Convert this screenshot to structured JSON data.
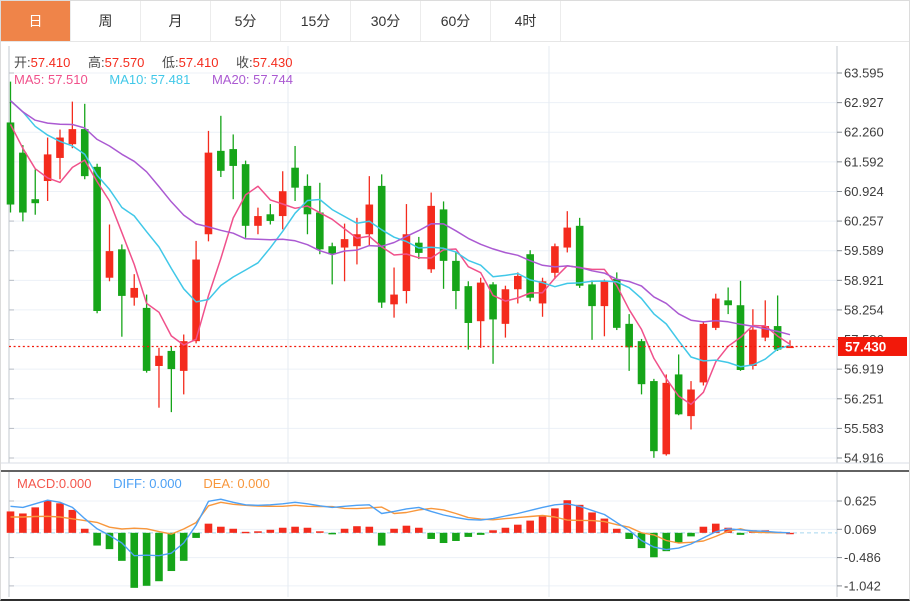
{
  "tabs": {
    "items": [
      {
        "id": "day",
        "label": "日",
        "selected": true
      },
      {
        "id": "week",
        "label": "周",
        "selected": false
      },
      {
        "id": "month",
        "label": "月",
        "selected": false
      },
      {
        "id": "5min",
        "label": "5分",
        "selected": false
      },
      {
        "id": "15min",
        "label": "15分",
        "selected": false
      },
      {
        "id": "30min",
        "label": "30分",
        "selected": false
      },
      {
        "id": "60min",
        "label": "60分",
        "selected": false
      },
      {
        "id": "4hour",
        "label": "4时",
        "selected": false
      }
    ]
  },
  "quote": {
    "open_label": "开:",
    "open": "57.410",
    "high_label": "高:",
    "high": "57.570",
    "low_label": "低:",
    "low": "57.410",
    "close_label": "收:",
    "close": "57.430"
  },
  "ma_info": {
    "ma5_label": "MA5:",
    "ma5": "57.510",
    "ma10_label": "MA10:",
    "ma10": "57.481",
    "ma20_label": "MA20:",
    "ma20": "57.744"
  },
  "macd_info": {
    "macd_label": "MACD:",
    "macd": "0.000",
    "diff_label": "DIFF:",
    "diff": "0.000",
    "dea_label": "DEA:",
    "dea": "0.000"
  },
  "price_marker": {
    "value": "57.430",
    "price": 57.43
  },
  "colors": {
    "up": "#f42b1d",
    "down": "#16a519",
    "ma5": "#f0518b",
    "ma10": "#41c8e8",
    "ma20": "#ab5ad2",
    "diff": "#4da1f5",
    "dea": "#f8973c",
    "tab_accent": "#ef8449",
    "marker": "#f2190a",
    "grid": "#ecf1f7",
    "vgrid": "#e6ebf2",
    "axis": "#c3c8cf",
    "tick_text": "#3e3e3e",
    "zero_dash": "#a6d7ef"
  },
  "chart_data": {
    "type": "candlestick+macd",
    "legend_position": "top-left-overlay",
    "grid": true,
    "v_grid_x": [
      287,
      548
    ],
    "main": {
      "ylabel": "",
      "y_ticks": [
        "63.595",
        "62.927",
        "62.260",
        "61.592",
        "60.924",
        "60.257",
        "59.589",
        "58.921",
        "58.254",
        "57.586",
        "56.919",
        "56.251",
        "55.583",
        "54.916"
      ],
      "last_price": 57.43,
      "ma_periods": [
        5,
        10,
        20
      ],
      "ma_pad": [
        63.9,
        63.75,
        63.55,
        63.35,
        63.15,
        62.95,
        62.8,
        62.65
      ],
      "candles": [
        [
          62.48,
          63.4,
          60.45,
          60.63
        ],
        [
          61.8,
          61.97,
          60.25,
          60.45
        ],
        [
          60.75,
          61.42,
          60.4,
          60.66
        ],
        [
          61.16,
          62.14,
          60.71,
          61.76
        ],
        [
          61.68,
          62.32,
          61.2,
          62.14
        ],
        [
          61.99,
          62.95,
          61.9,
          62.33
        ],
        [
          62.33,
          62.9,
          61.2,
          61.27
        ],
        [
          61.48,
          61.55,
          58.18,
          58.23
        ],
        [
          58.98,
          60.18,
          58.9,
          59.58
        ],
        [
          59.62,
          59.73,
          57.65,
          58.57
        ],
        [
          58.53,
          59.06,
          58.35,
          58.75
        ],
        [
          58.3,
          58.6,
          56.84,
          56.88
        ],
        [
          56.99,
          57.4,
          56.05,
          57.22
        ],
        [
          57.33,
          57.44,
          55.95,
          56.92
        ],
        [
          56.88,
          57.7,
          56.35,
          57.55
        ],
        [
          57.55,
          59.81,
          57.5,
          59.39
        ],
        [
          59.96,
          62.29,
          59.8,
          61.8
        ],
        [
          61.84,
          62.63,
          61.25,
          61.39
        ],
        [
          61.88,
          62.21,
          60.75,
          61.5
        ],
        [
          61.54,
          61.62,
          59.88,
          60.15
        ],
        [
          60.15,
          60.56,
          59.96,
          60.37
        ],
        [
          60.41,
          60.64,
          60.18,
          60.26
        ],
        [
          60.37,
          61.38,
          60.07,
          60.93
        ],
        [
          61.46,
          61.95,
          60.71,
          61.01
        ],
        [
          61.05,
          61.31,
          59.96,
          60.41
        ],
        [
          60.45,
          61.12,
          59.51,
          59.62
        ],
        [
          59.69,
          59.77,
          58.83,
          59.51
        ],
        [
          59.66,
          60.2,
          58.9,
          59.85
        ],
        [
          59.69,
          60.33,
          59.28,
          59.96
        ],
        [
          59.96,
          61.27,
          59.69,
          60.63
        ],
        [
          61.05,
          61.31,
          58.3,
          58.42
        ],
        [
          58.38,
          59.21,
          58.08,
          58.6
        ],
        [
          58.68,
          60.64,
          58.4,
          59.96
        ],
        [
          59.77,
          59.9,
          59.4,
          59.54
        ],
        [
          59.17,
          60.9,
          59.09,
          60.6
        ],
        [
          60.52,
          60.7,
          58.73,
          59.36
        ],
        [
          59.36,
          59.55,
          58.27,
          58.68
        ],
        [
          58.79,
          58.9,
          57.36,
          57.96
        ],
        [
          58.0,
          58.98,
          57.4,
          58.87
        ],
        [
          58.83,
          58.88,
          57.04,
          58.04
        ],
        [
          57.94,
          58.8,
          57.63,
          58.72
        ],
        [
          58.72,
          59.1,
          58.4,
          59.02
        ],
        [
          59.51,
          59.6,
          58.45,
          58.53
        ],
        [
          58.4,
          58.98,
          58.1,
          58.9
        ],
        [
          59.09,
          59.75,
          58.95,
          59.69
        ],
        [
          59.66,
          60.48,
          59.55,
          60.11
        ],
        [
          60.15,
          60.33,
          58.75,
          58.8
        ],
        [
          58.83,
          58.92,
          57.58,
          58.34
        ],
        [
          58.34,
          58.94,
          57.66,
          58.9
        ],
        [
          58.95,
          59.1,
          57.8,
          57.85
        ],
        [
          57.94,
          58.16,
          56.88,
          57.41
        ],
        [
          57.55,
          57.6,
          56.35,
          56.58
        ],
        [
          56.65,
          56.7,
          54.92,
          55.07
        ],
        [
          55.0,
          56.8,
          54.97,
          56.61
        ],
        [
          56.8,
          57.25,
          55.88,
          55.9
        ],
        [
          55.86,
          56.65,
          55.56,
          56.46
        ],
        [
          56.62,
          58.0,
          56.55,
          57.94
        ],
        [
          57.85,
          58.62,
          57.8,
          58.51
        ],
        [
          58.47,
          58.76,
          58.16,
          58.36
        ],
        [
          58.36,
          58.91,
          56.88,
          56.9
        ],
        [
          56.99,
          58.27,
          56.91,
          57.81
        ],
        [
          57.63,
          58.47,
          57.55,
          57.89
        ],
        [
          57.89,
          58.58,
          57.33,
          57.36
        ],
        [
          57.41,
          57.57,
          57.41,
          57.43
        ]
      ]
    },
    "macd": {
      "y_ticks": [
        "0.625",
        "0.069",
        "-0.486",
        "-1.042"
      ],
      "hist": [
        0.42,
        0.38,
        0.5,
        0.63,
        0.58,
        0.45,
        0.08,
        -0.25,
        -0.32,
        -0.55,
        -1.08,
        -1.04,
        -0.95,
        -0.75,
        -0.55,
        -0.1,
        0.18,
        0.12,
        0.08,
        0.02,
        0.03,
        0.06,
        0.1,
        0.12,
        0.1,
        0.03,
        -0.03,
        0.08,
        0.13,
        0.12,
        -0.25,
        0.08,
        0.14,
        0.1,
        -0.12,
        -0.2,
        -0.16,
        -0.08,
        -0.04,
        0.05,
        0.1,
        0.16,
        0.24,
        0.32,
        0.48,
        0.64,
        0.55,
        0.4,
        0.28,
        0.08,
        -0.12,
        -0.3,
        -0.48,
        -0.36,
        -0.2,
        -0.07,
        0.12,
        0.18,
        0.1,
        -0.04,
        0.05,
        0.05,
        0.02,
        0.0
      ],
      "diff": [
        0.52,
        0.5,
        0.57,
        0.64,
        0.6,
        0.5,
        0.28,
        0.08,
        -0.05,
        -0.2,
        -0.45,
        -0.44,
        -0.45,
        -0.4,
        -0.2,
        0.15,
        0.62,
        0.66,
        0.6,
        0.55,
        0.54,
        0.55,
        0.57,
        0.6,
        0.57,
        0.53,
        0.5,
        0.52,
        0.54,
        0.55,
        0.38,
        0.42,
        0.47,
        0.5,
        0.42,
        0.35,
        0.3,
        0.26,
        0.25,
        0.28,
        0.33,
        0.38,
        0.44,
        0.5,
        0.55,
        0.57,
        0.52,
        0.44,
        0.36,
        0.2,
        0.05,
        -0.15,
        -0.28,
        -0.33,
        -0.3,
        -0.22,
        -0.1,
        0.02,
        0.08,
        0.06,
        0.04,
        0.03,
        0.01,
        0.0
      ]
    }
  }
}
